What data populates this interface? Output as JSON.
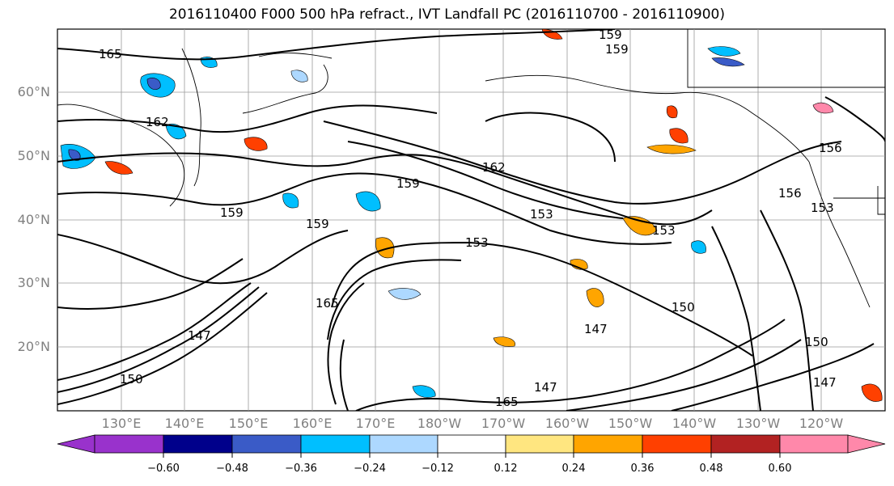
{
  "title": "2016110400 F000 500 hPa refract., IVT Landfall PC (2016110700 - 2016110900)",
  "lat_labels": [
    "60°N",
    "50°N",
    "40°N",
    "30°N",
    "20°N"
  ],
  "lon_labels": [
    "130°E",
    "140°E",
    "150°E",
    "160°E",
    "170°E",
    "180°W",
    "170°W",
    "160°W",
    "150°W",
    "140°W",
    "130°W",
    "120°W"
  ],
  "contour_labels": [
    "165",
    "162",
    "159",
    "159",
    "162",
    "159",
    "153",
    "153",
    "153",
    "150",
    "147",
    "150",
    "156",
    "156",
    "153",
    "159",
    "159",
    "150",
    "147",
    "165",
    "147",
    "147",
    "165"
  ],
  "colorbar": {
    "ticks": [
      "−0.60",
      "−0.48",
      "−0.36",
      "−0.24",
      "−0.12",
      "0.12",
      "0.24",
      "0.36",
      "0.48",
      "0.60"
    ],
    "colors": [
      "#9932cc",
      "#00008b",
      "#3a5bc7",
      "#00bfff",
      "#add8ff",
      "#ffffff",
      "#ffe680",
      "#ffa500",
      "#ff4000",
      "#b22222",
      "#ff88aa"
    ]
  }
}
